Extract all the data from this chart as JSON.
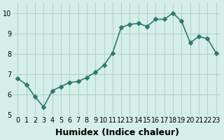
{
  "x": [
    0,
    1,
    2,
    3,
    4,
    5,
    6,
    7,
    8,
    9,
    10,
    11,
    12,
    13,
    14,
    15,
    16,
    17,
    18,
    19,
    20,
    21,
    22,
    23
  ],
  "y": [
    6.8,
    6.5,
    5.9,
    5.4,
    6.2,
    6.4,
    6.6,
    6.65,
    6.85,
    7.1,
    7.45,
    8.05,
    9.3,
    9.45,
    9.5,
    9.35,
    9.7,
    9.7,
    10.0,
    9.6,
    8.55,
    8.85,
    8.75,
    8.05
  ],
  "line_color": "#2d7a6e",
  "marker": "D",
  "marker_size": 3,
  "background_color": "#d6eee8",
  "grid_color": "#b0d4cc",
  "xlabel": "Humidex (Indice chaleur)",
  "xlabel_fontsize": 9,
  "ylim": [
    5,
    10.5
  ],
  "xlim": [
    -0.5,
    23.5
  ],
  "yticks": [
    5,
    6,
    7,
    8,
    9,
    10
  ],
  "xticks": [
    0,
    1,
    2,
    3,
    4,
    5,
    6,
    7,
    8,
    9,
    10,
    11,
    12,
    13,
    14,
    15,
    16,
    17,
    18,
    19,
    20,
    21,
    22,
    23
  ],
  "tick_fontsize": 7,
  "line_width": 1.2
}
